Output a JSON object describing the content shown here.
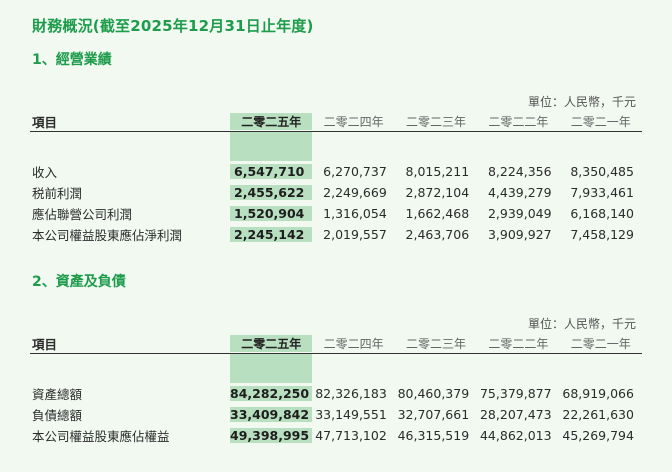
{
  "page_title": "財務概況(截至2025年12月31日止年度)",
  "unit_note": "單位：人民幣，千元",
  "item_header": "項目",
  "years": [
    "二零二五年",
    "二零二四年",
    "二零二三年",
    "二零二二年",
    "二零二一年"
  ],
  "sections": [
    {
      "title": "1、經營業績",
      "rows": [
        {
          "label": "收入",
          "values": [
            "6,547,710",
            "6,270,737",
            "8,015,211",
            "8,224,356",
            "8,350,485"
          ]
        },
        {
          "label": "税前利潤",
          "values": [
            "2,455,622",
            "2,249,669",
            "2,872,104",
            "4,439,279",
            "7,933,461"
          ]
        },
        {
          "label": "應佔聯營公司利潤",
          "values": [
            "1,520,904",
            "1,316,054",
            "1,662,468",
            "2,939,049",
            "6,168,140"
          ]
        },
        {
          "label": "本公司權益股東應佔淨利潤",
          "values": [
            "2,245,142",
            "2,019,557",
            "2,463,706",
            "3,909,927",
            "7,458,129"
          ]
        }
      ]
    },
    {
      "title": "2、資產及負債",
      "rows": [
        {
          "label": "資產總額",
          "values": [
            "84,282,250",
            "82,326,183",
            "80,460,379",
            "75,379,877",
            "68,919,066"
          ]
        },
        {
          "label": "負債總額",
          "values": [
            "33,409,842",
            "33,149,551",
            "32,707,661",
            "28,207,473",
            "22,261,630"
          ]
        },
        {
          "label": "本公司權益股東應佔權益",
          "values": [
            "49,398,995",
            "47,713,102",
            "46,315,519",
            "44,862,013",
            "45,269,794"
          ]
        }
      ]
    }
  ]
}
